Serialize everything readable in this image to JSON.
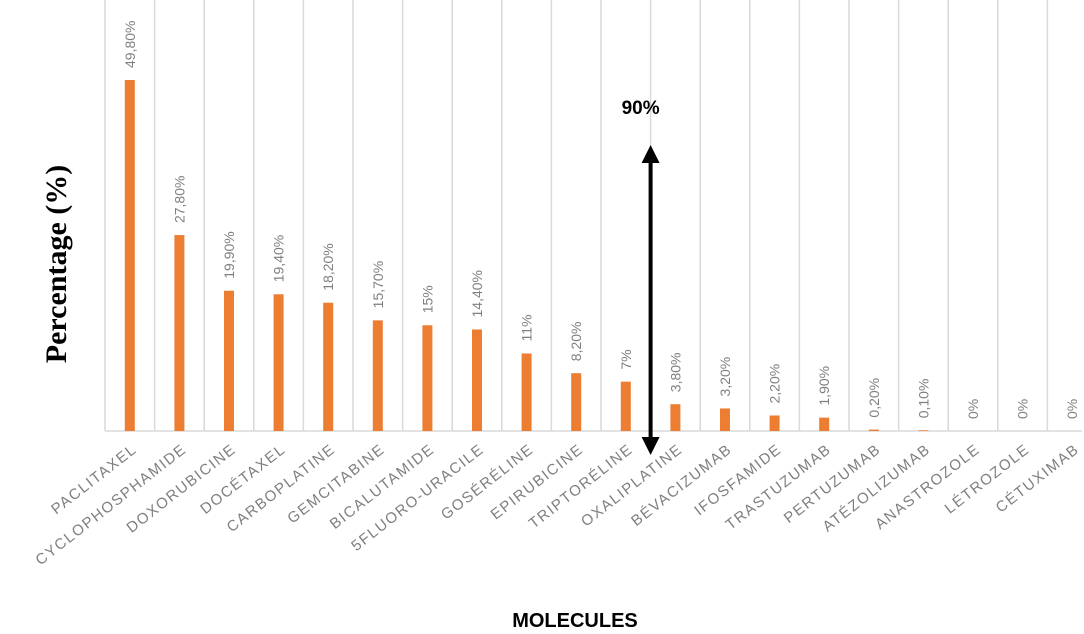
{
  "chart_data": {
    "type": "bar",
    "title": "",
    "xlabel": "MOLECULES",
    "ylabel": "Percentage (%)",
    "ylim": [
      0,
      55
    ],
    "grid": "vertical",
    "categories": [
      "PACLITAXEL",
      "CYCLOPHOSPHAMIDE",
      "DOXORUBICINE",
      "DOCÉTAXEL",
      "CARBOPLATINE",
      "GEMCITABINE",
      "BICALUTAMIDE",
      "5FLUORO-URACILE",
      "GOSÉRÉLINE",
      "EPIRUBICINE",
      "TRIPTORÉLINE",
      "OXALIPLATINE",
      "BÉVACIZUMAB",
      "IFOSFAMIDE",
      "TRASTUZUMAB",
      "PERTUZUMAB",
      "ATÉZOLIZUMAB",
      "ANASTROZOLE",
      "LÉTROZOLE",
      "CÉTUXIMAB"
    ],
    "values": [
      49.8,
      27.8,
      19.9,
      19.4,
      18.2,
      15.7,
      15,
      14.4,
      11,
      8.2,
      7,
      3.8,
      3.2,
      2.2,
      1.9,
      0.2,
      0.1,
      0,
      0,
      0
    ],
    "data_labels": [
      "49,80%",
      "27,80%",
      "19,90%",
      "19,40%",
      "18,20%",
      "15,70%",
      "15%",
      "14,40%",
      "11%",
      "8,20%",
      "7%",
      "3,80%",
      "3,20%",
      "2,20%",
      "1,90%",
      "0,20%",
      "0,10%",
      "0%",
      "0%",
      "0%"
    ],
    "bar_color": "#ed7d31",
    "annotation": {
      "text": "90%",
      "type": "double-arrow",
      "from_value": 0,
      "to_value": 45,
      "after_category": "TRIPTORÉLINE"
    }
  }
}
